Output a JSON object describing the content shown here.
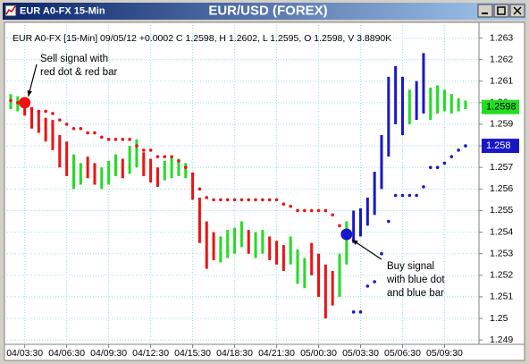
{
  "window_title": "EUR A0-FX 15-Min",
  "chart_data": {
    "type": "bar-chart-signals",
    "title": "EUR/USD (FOREX)",
    "info": "EUR A0-FX [15-Min] 09/05/12 +0.0002 C 1.2598, H 1.2602, L 1.2595, O 1.2598, V 3.8890K",
    "categories": [
      null,
      null,
      "04/03:30",
      null,
      null,
      null,
      null,
      null,
      "04/06:30",
      null,
      null,
      null,
      null,
      null,
      "04/09:30",
      null,
      null,
      null,
      null,
      null,
      "04/12:30",
      null,
      null,
      null,
      null,
      null,
      "04/15:30",
      null,
      null,
      null,
      null,
      null,
      "04/18:30",
      null,
      null,
      null,
      null,
      null,
      "04/21:30",
      null,
      null,
      null,
      null,
      null,
      "05/00:30",
      null,
      null,
      null,
      null,
      null,
      "05/03:30",
      null,
      null,
      null,
      null,
      null,
      "05/06:30",
      null,
      null,
      null,
      null,
      null,
      "05/09:30",
      null,
      null,
      null
    ],
    "high": [
      1.2604,
      1.2603,
      1.2602,
      1.2598,
      1.2596,
      1.2593,
      1.2592,
      1.2585,
      1.2582,
      1.2576,
      1.2572,
      1.2575,
      1.2572,
      1.257,
      1.2573,
      1.2576,
      1.2574,
      1.258,
      1.2583,
      1.2577,
      1.2574,
      1.257,
      1.2573,
      1.2575,
      1.2574,
      1.2572,
      1.2567,
      1.2556,
      1.2545,
      1.254,
      1.2538,
      1.2541,
      1.2542,
      1.2545,
      1.2541,
      1.254,
      1.2541,
      1.2538,
      1.2536,
      1.2534,
      1.2538,
      1.2532,
      1.2528,
      1.2535,
      1.253,
      1.2525,
      1.2522,
      1.253,
      1.2545,
      1.255,
      1.2551,
      1.2556,
      1.2568,
      1.2585,
      1.2612,
      1.2617,
      1.2612,
      1.2606,
      1.261,
      1.2623,
      1.2607,
      1.2608,
      1.2606,
      1.2604,
      1.2602,
      1.2601
    ],
    "low": [
      1.2597,
      1.2596,
      1.2594,
      1.2588,
      1.2586,
      1.2582,
      1.2578,
      1.257,
      1.2566,
      1.256,
      1.2562,
      1.2565,
      1.2562,
      1.256,
      1.2562,
      1.2566,
      1.2565,
      1.2567,
      1.257,
      1.2566,
      1.2563,
      1.2561,
      1.2564,
      1.2565,
      1.2566,
      1.2565,
      1.2555,
      1.2535,
      1.2523,
      1.2527,
      1.2526,
      1.2528,
      1.253,
      1.2533,
      1.253,
      1.2528,
      1.253,
      1.2527,
      1.2525,
      1.2522,
      1.2525,
      1.2516,
      1.2514,
      1.252,
      1.251,
      1.25,
      1.2506,
      1.251,
      1.2525,
      1.2535,
      1.2538,
      1.2543,
      1.2548,
      1.256,
      1.2575,
      1.259,
      1.2585,
      1.259,
      1.2592,
      1.2595,
      1.2592,
      1.2595,
      1.2596,
      1.2595,
      1.2596,
      1.2597
    ],
    "bar_colors": [
      "#22dd22",
      "#22dd22",
      "#ee1111",
      "#ee1111",
      "#ee1111",
      "#ee1111",
      "#ee1111",
      "#ee1111",
      "#ee1111",
      "#22dd22",
      "#22dd22",
      "#ee1111",
      "#ee1111",
      "#22dd22",
      "#22dd22",
      "#22dd22",
      "#ee1111",
      "#22dd22",
      "#22dd22",
      "#ee1111",
      "#ee1111",
      "#ee1111",
      "#22dd22",
      "#22dd22",
      "#22dd22",
      "#22dd22",
      "#ee1111",
      "#ee1111",
      "#ee1111",
      "#ee1111",
      "#22dd22",
      "#22dd22",
      "#22dd22",
      "#22dd22",
      "#ee1111",
      "#22dd22",
      "#22dd22",
      "#ee1111",
      "#ee1111",
      "#ee1111",
      "#22dd22",
      "#22dd22",
      "#22dd22",
      "#ee1111",
      "#ee1111",
      "#ee1111",
      "#ee1111",
      "#22dd22",
      "#22dd22",
      "#1818c8",
      "#1818c8",
      "#1818c8",
      "#1818c8",
      "#1818c8",
      "#1818c8",
      "#1818c8",
      "#1818c8",
      "#22dd22",
      "#1818c8",
      "#1818c8",
      "#22dd22",
      "#22dd22",
      "#22dd22",
      "#22dd22",
      "#22dd22",
      "#22dd22"
    ],
    "series": [
      {
        "color": "#ee1111",
        "values": [
          1.2601,
          1.26,
          1.2599,
          1.2597,
          1.2596,
          1.2596,
          1.2595,
          1.2592,
          1.259,
          1.2588,
          1.2588,
          1.2586,
          1.2586,
          1.2584,
          1.2583,
          1.2583,
          1.2583,
          1.2583,
          1.258,
          1.2578,
          1.2578,
          1.2575,
          1.2575,
          1.2575,
          1.2573,
          1.257,
          1.2567,
          1.256,
          1.2556,
          1.2555,
          1.2555,
          1.2555,
          1.2555,
          1.2555,
          1.2555,
          1.2555,
          1.2555,
          1.2555,
          1.2555,
          1.2553,
          1.2552,
          1.255,
          1.255,
          1.255,
          1.255,
          1.255,
          1.2548,
          1.2543,
          1.254,
          null,
          null,
          null,
          null,
          null,
          null,
          null,
          null,
          null,
          null,
          null,
          null,
          null,
          null,
          null,
          null,
          null
        ]
      },
      {
        "color": "#1818c8",
        "values": [
          null,
          null,
          null,
          null,
          null,
          null,
          null,
          null,
          null,
          null,
          null,
          null,
          null,
          null,
          null,
          null,
          null,
          null,
          null,
          null,
          null,
          null,
          null,
          null,
          null,
          null,
          null,
          null,
          null,
          null,
          null,
          null,
          null,
          null,
          null,
          null,
          null,
          null,
          null,
          null,
          null,
          null,
          null,
          null,
          null,
          null,
          null,
          null,
          null,
          1.2503,
          1.2503,
          1.2515,
          1.2517,
          1.253,
          1.2545,
          1.2557,
          1.2557,
          1.2557,
          1.2557,
          1.2561,
          1.257,
          1.257,
          1.2572,
          1.2575,
          1.2578,
          1.258
        ]
      }
    ],
    "signals": [
      {
        "bar": 2,
        "value": 1.26,
        "color": "#ee1111",
        "lines": [
          "Sell signal with",
          "red dot & red bar"
        ]
      },
      {
        "bar": 48,
        "value": 1.2539,
        "color": "#1818c8",
        "lines": [
          "Buy signal",
          "with blue dot",
          "and blue bar"
        ]
      }
    ],
    "price_labels": [
      {
        "value": 1.2598,
        "color": "#22dd22",
        "text_color": "#000000"
      },
      {
        "value": 1.258,
        "color": "#1818c8",
        "text_color": "#ffffff"
      }
    ],
    "ylim": [
      1.2488,
      1.2636
    ],
    "yticks": [
      1.249,
      1.25,
      1.251,
      1.252,
      1.253,
      1.254,
      1.255,
      1.256,
      1.257,
      1.258,
      1.259,
      1.26,
      1.261,
      1.262,
      1.263
    ],
    "grid": true
  }
}
